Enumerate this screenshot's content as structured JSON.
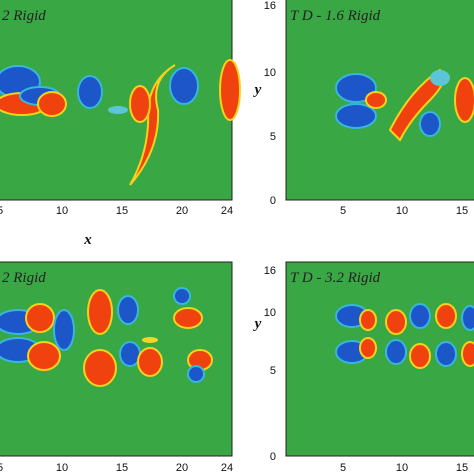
{
  "panels": [
    {
      "label": "2 Rigid",
      "xticks": [
        "5",
        "10",
        "15",
        "20",
        "24"
      ],
      "xlabel": "x"
    },
    {
      "label": "T D - 1.6 Rigid",
      "yticks": [
        "0",
        "5",
        "10",
        "16"
      ],
      "ylabel": "y",
      "xticks": [
        "5",
        "10",
        "15"
      ]
    },
    {
      "label": "2 Rigid",
      "xticks": [
        "5",
        "10",
        "15",
        "20",
        "24"
      ]
    },
    {
      "label": "T D - 3.2 Rigid",
      "yticks": [
        "0",
        "5",
        "10",
        "16"
      ],
      "ylabel": "y",
      "xticks": [
        "5",
        "10",
        "15"
      ]
    }
  ]
}
